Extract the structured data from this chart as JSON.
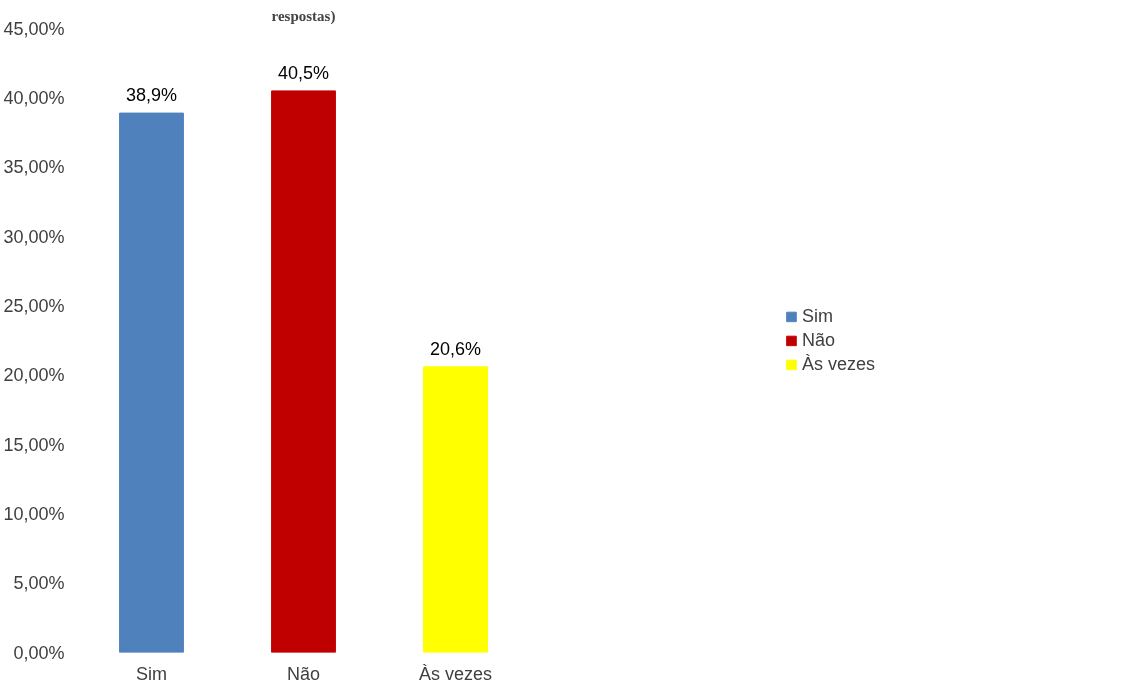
{
  "chart_data": {
    "type": "bar",
    "title": "respostas)",
    "categories": [
      "Sim",
      "Não",
      "Às vezes"
    ],
    "series": [
      {
        "name": "Sim",
        "color": "#4f81bd",
        "values": [
          38.9,
          null,
          null
        ],
        "value_labels": [
          "38,9%",
          null,
          null
        ]
      },
      {
        "name": "Não",
        "color": "#c00000",
        "values": [
          null,
          40.5,
          null
        ],
        "value_labels": [
          null,
          "40,5%",
          null
        ]
      },
      {
        "name": "Às vezes",
        "color": "#ffff00",
        "values": [
          null,
          null,
          20.6
        ],
        "value_labels": [
          null,
          null,
          "20,6%"
        ]
      }
    ],
    "ylim": [
      0,
      45
    ],
    "yticks": [
      {
        "value": 0,
        "label": "0,00%"
      },
      {
        "value": 5,
        "label": "5,00%"
      },
      {
        "value": 10,
        "label": "10,00%"
      },
      {
        "value": 15,
        "label": "15,00%"
      },
      {
        "value": 20,
        "label": "20,00%"
      },
      {
        "value": 25,
        "label": "25,00%"
      },
      {
        "value": 30,
        "label": "30,00%"
      },
      {
        "value": 35,
        "label": "35,00%"
      },
      {
        "value": 40,
        "label": "40,00%"
      },
      {
        "value": 45,
        "label": "45,00%"
      }
    ],
    "grid": false,
    "legend": "right"
  }
}
